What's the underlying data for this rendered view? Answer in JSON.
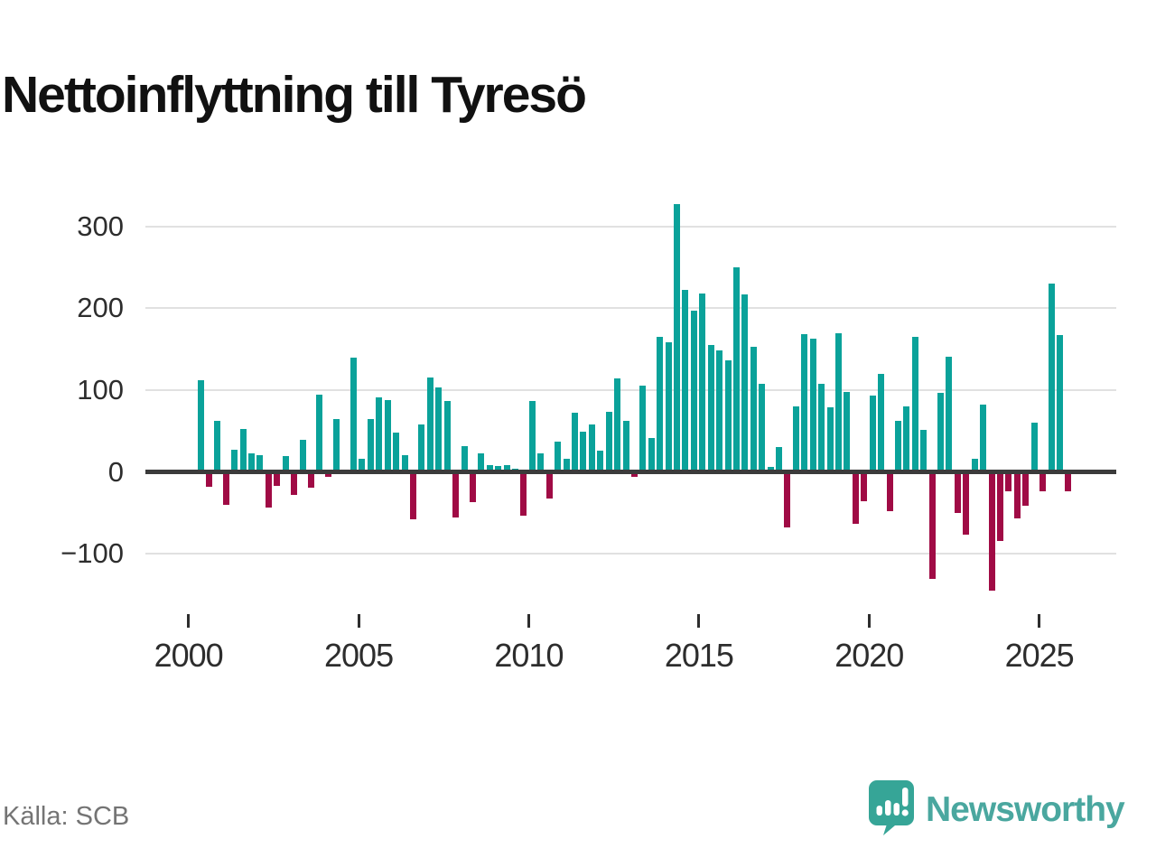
{
  "title": "Nettoinflyttning till Tyresö",
  "source_label": "Källa: SCB",
  "brand": {
    "name": "Newsworthy"
  },
  "colors": {
    "positive": "#0aa29a",
    "negative": "#a00b45",
    "grid": "#e1e1e1",
    "zero_line": "#3b3b3b",
    "axis_text": "#2d2d2d",
    "title_text": "#111111",
    "source_text": "#747474",
    "brand_bubble": "#36a597",
    "brand_text": "#4aa79f"
  },
  "chart_data": {
    "type": "bar",
    "title": "Nettoinflyttning till Tyresö",
    "frequency": "quarterly",
    "x_range": [
      "2000Q3",
      "2026Q1"
    ],
    "ylim": [
      -160,
      340
    ],
    "grid": "horizontal",
    "legend": "none",
    "yticks": [
      {
        "label": "300",
        "value": 300
      },
      {
        "label": "200",
        "value": 200
      },
      {
        "label": "100",
        "value": 100
      },
      {
        "label": "0",
        "value": 0
      },
      {
        "label": "−100",
        "value": -100
      }
    ],
    "xticks": [
      "2000",
      "2005",
      "2010",
      "2015",
      "2020",
      "2025"
    ],
    "points": [
      [
        "2000Q3",
        112
      ],
      [
        "2000Q4",
        -18
      ],
      [
        "2001Q1",
        63
      ],
      [
        "2001Q2",
        -40
      ],
      [
        "2001Q3",
        27
      ],
      [
        "2001Q4",
        53
      ],
      [
        "2002Q1",
        23
      ],
      [
        "2002Q2",
        21
      ],
      [
        "2002Q3",
        -43
      ],
      [
        "2002Q4",
        -17
      ],
      [
        "2003Q1",
        20
      ],
      [
        "2003Q2",
        -28
      ],
      [
        "2003Q3",
        39
      ],
      [
        "2003Q4",
        -19
      ],
      [
        "2004Q1",
        95
      ],
      [
        "2004Q2",
        -6
      ],
      [
        "2004Q3",
        65
      ],
      [
        "2004Q4",
        0
      ],
      [
        "2005Q1",
        140
      ],
      [
        "2005Q2",
        16
      ],
      [
        "2005Q3",
        65
      ],
      [
        "2005Q4",
        91
      ],
      [
        "2006Q1",
        88
      ],
      [
        "2006Q2",
        48
      ],
      [
        "2006Q3",
        21
      ],
      [
        "2006Q4",
        -58
      ],
      [
        "2007Q1",
        58
      ],
      [
        "2007Q2",
        115
      ],
      [
        "2007Q3",
        103
      ],
      [
        "2007Q4",
        87
      ],
      [
        "2008Q1",
        -55
      ],
      [
        "2008Q2",
        32
      ],
      [
        "2008Q3",
        -37
      ],
      [
        "2008Q4",
        23
      ],
      [
        "2009Q1",
        8
      ],
      [
        "2009Q2",
        7
      ],
      [
        "2009Q3",
        8
      ],
      [
        "2009Q4",
        4
      ],
      [
        "2010Q1",
        -53
      ],
      [
        "2010Q2",
        87
      ],
      [
        "2010Q3",
        23
      ],
      [
        "2010Q4",
        -32
      ],
      [
        "2011Q1",
        37
      ],
      [
        "2011Q2",
        16
      ],
      [
        "2011Q3",
        72
      ],
      [
        "2011Q4",
        49
      ],
      [
        "2012Q1",
        58
      ],
      [
        "2012Q2",
        26
      ],
      [
        "2012Q3",
        73
      ],
      [
        "2012Q4",
        114
      ],
      [
        "2013Q1",
        62
      ],
      [
        "2013Q2",
        -6
      ],
      [
        "2013Q3",
        105
      ],
      [
        "2013Q4",
        42
      ],
      [
        "2014Q1",
        165
      ],
      [
        "2014Q2",
        158
      ],
      [
        "2014Q3",
        327
      ],
      [
        "2014Q4",
        222
      ],
      [
        "2015Q1",
        197
      ],
      [
        "2015Q2",
        218
      ],
      [
        "2015Q3",
        155
      ],
      [
        "2015Q4",
        148
      ],
      [
        "2016Q1",
        136
      ],
      [
        "2016Q2",
        250
      ],
      [
        "2016Q3",
        217
      ],
      [
        "2016Q4",
        153
      ],
      [
        "2017Q1",
        108
      ],
      [
        "2017Q2",
        6
      ],
      [
        "2017Q3",
        30
      ],
      [
        "2017Q4",
        -68
      ],
      [
        "2018Q1",
        80
      ],
      [
        "2018Q2",
        168
      ],
      [
        "2018Q3",
        163
      ],
      [
        "2018Q4",
        108
      ],
      [
        "2019Q1",
        79
      ],
      [
        "2019Q2",
        170
      ],
      [
        "2019Q3",
        98
      ],
      [
        "2019Q4",
        -63
      ],
      [
        "2020Q1",
        -36
      ],
      [
        "2020Q2",
        93
      ],
      [
        "2020Q3",
        120
      ],
      [
        "2020Q4",
        -48
      ],
      [
        "2021Q1",
        62
      ],
      [
        "2021Q2",
        80
      ],
      [
        "2021Q3",
        165
      ],
      [
        "2021Q4",
        51
      ],
      [
        "2022Q1",
        -130
      ],
      [
        "2022Q2",
        97
      ],
      [
        "2022Q3",
        141
      ],
      [
        "2022Q4",
        -50
      ],
      [
        "2023Q1",
        -76
      ],
      [
        "2023Q2",
        16
      ],
      [
        "2023Q3",
        82
      ],
      [
        "2023Q4",
        -145
      ],
      [
        "2024Q1",
        -84
      ],
      [
        "2024Q2",
        -24
      ],
      [
        "2024Q3",
        -57
      ],
      [
        "2024Q4",
        -41
      ],
      [
        "2025Q1",
        60
      ],
      [
        "2025Q2",
        -23
      ],
      [
        "2025Q3",
        230
      ],
      [
        "2025Q4",
        167
      ],
      [
        "2026Q1",
        -24
      ]
    ]
  }
}
